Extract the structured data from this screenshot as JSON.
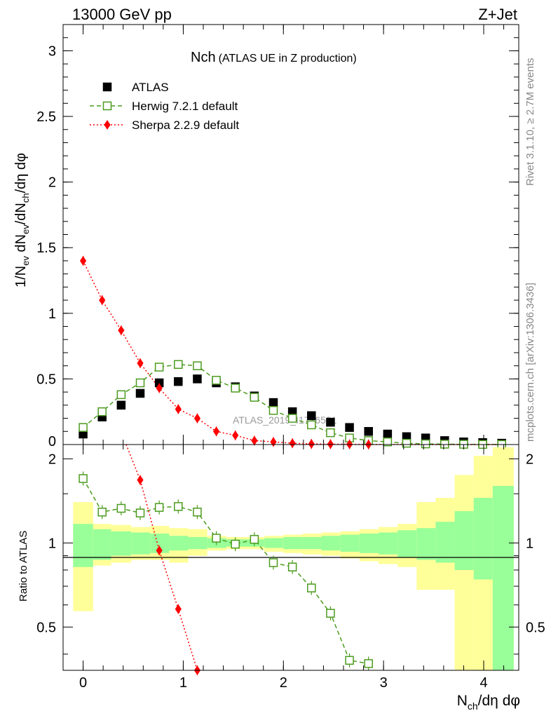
{
  "header": {
    "energy": "13000 GeV pp",
    "process": "Z+Jet",
    "side_rivet": "Rivet 3.1.10, ≥ 2.7M events",
    "side_mcplots": "mcplots.cern.ch [arXiv:1306.3436]"
  },
  "chart_data": {
    "type": "scatter",
    "title_main": "Nch",
    "title_sub": "(ATLAS UE in Z production)",
    "watermark": "ATLAS_2019_I1736531",
    "xlabel": "N_ch/dη dφ",
    "xlim": [
      -0.2,
      4.35
    ],
    "main_panel": {
      "ylabel": "1/N_ev dN_ev/dN_ch/dη dφ",
      "ylim": [
        0,
        3.2
      ],
      "yticks": [
        0.5,
        1,
        1.5,
        2,
        2.5,
        3
      ],
      "ytick_labels": [
        "0.5",
        "1",
        "1.5",
        "2",
        "2.5",
        "3"
      ]
    },
    "ratio_panel": {
      "ylabel": "Ratio to ATLAS",
      "ylim": [
        0.35,
        2.25
      ],
      "yticks": [
        0.5,
        1,
        2
      ],
      "ytick_labels": [
        "0.5",
        "1",
        "2"
      ]
    },
    "xticks": [
      0,
      1,
      2,
      3,
      4
    ],
    "xtick_labels": [
      "0",
      "1",
      "2",
      "3",
      "4"
    ],
    "legend": [
      {
        "name": "ATLAS",
        "color": "#000000",
        "marker": "filled-square"
      },
      {
        "name": "Herwig 7.2.1 default",
        "color": "#4c9b1e",
        "marker": "open-square",
        "line": "dashed"
      },
      {
        "name": "Sherpa 2.2.9 default",
        "color": "#ff0000",
        "marker": "filled-diamond",
        "line": "dotted"
      }
    ],
    "x": [
      0.0,
      0.19,
      0.38,
      0.57,
      0.76,
      0.95,
      1.14,
      1.33,
      1.52,
      1.71,
      1.9,
      2.09,
      2.28,
      2.47,
      2.66,
      2.85,
      3.04,
      3.23,
      3.42,
      3.61,
      3.8,
      3.99,
      4.18
    ],
    "bin_edges": [
      -0.1,
      0.1,
      0.28,
      0.48,
      0.67,
      0.86,
      1.05,
      1.24,
      1.43,
      1.62,
      1.81,
      2.0,
      2.19,
      2.38,
      2.57,
      2.76,
      2.95,
      3.14,
      3.33,
      3.52,
      3.71,
      3.9,
      4.09,
      4.3
    ],
    "series": [
      {
        "name": "ATLAS",
        "values": [
          0.08,
          0.21,
          0.3,
          0.39,
          0.47,
          0.48,
          0.5,
          0.47,
          0.44,
          0.37,
          0.32,
          0.25,
          0.22,
          0.17,
          0.13,
          0.1,
          0.08,
          0.06,
          0.05,
          0.03,
          0.02,
          0.015,
          0.01
        ]
      },
      {
        "name": "Herwig 7.2.1 default",
        "values": [
          0.13,
          0.25,
          0.38,
          0.47,
          0.59,
          0.61,
          0.6,
          0.49,
          0.43,
          0.36,
          0.26,
          0.2,
          0.15,
          0.09,
          0.05,
          0.03,
          0.02,
          0.01,
          0.005,
          0.003,
          0.002,
          0.001,
          0.0005
        ]
      },
      {
        "name": "Sherpa 2.2.9 default",
        "values": [
          1.4,
          1.1,
          0.87,
          0.62,
          0.43,
          0.27,
          0.2,
          0.1,
          0.07,
          0.03,
          0.02,
          0.01,
          0.005,
          0.003,
          0.002,
          0.001,
          0.0007,
          0.0004,
          0.0002,
          0.0001,
          0.0001,
          0.0001,
          0.0001
        ]
      }
    ],
    "ratio_series": [
      {
        "name": "Herwig 7.2.1 default",
        "x": [
          0.0,
          0.19,
          0.38,
          0.57,
          0.76,
          0.95,
          1.14,
          1.33,
          1.52,
          1.71,
          1.9,
          2.09,
          2.28,
          2.47,
          2.66,
          2.85
        ],
        "values": [
          1.7,
          1.29,
          1.33,
          1.28,
          1.34,
          1.35,
          1.29,
          1.04,
          0.99,
          1.03,
          0.85,
          0.82,
          0.69,
          0.56,
          0.38,
          0.37
        ]
      },
      {
        "name": "Sherpa 2.2.9 default",
        "x": [
          0.57,
          0.76,
          0.95,
          1.14
        ],
        "values": [
          1.68,
          0.94,
          0.58,
          0.35
        ]
      }
    ],
    "band_inner": {
      "low": [
        0.82,
        0.87,
        0.9,
        0.91,
        0.92,
        0.94,
        0.95,
        0.96,
        0.97,
        0.97,
        0.96,
        0.95,
        0.95,
        0.94,
        0.93,
        0.92,
        0.91,
        0.89,
        0.87,
        0.85,
        0.8,
        0.74,
        0.35
      ],
      "high": [
        1.17,
        1.12,
        1.1,
        1.09,
        1.08,
        1.06,
        1.05,
        1.04,
        1.03,
        1.03,
        1.04,
        1.05,
        1.05,
        1.06,
        1.07,
        1.08,
        1.09,
        1.11,
        1.13,
        1.19,
        1.3,
        1.45,
        1.6
      ]
    },
    "band_outer": {
      "low": [
        0.57,
        0.83,
        0.85,
        0.87,
        0.87,
        0.85,
        0.9,
        0.94,
        0.95,
        0.95,
        0.93,
        0.92,
        0.91,
        0.9,
        0.88,
        0.86,
        0.84,
        0.82,
        0.68,
        0.68,
        0.35,
        0.35,
        0.35
      ],
      "high": [
        1.4,
        1.17,
        1.16,
        1.14,
        1.15,
        1.13,
        1.12,
        1.06,
        1.05,
        1.05,
        1.06,
        1.07,
        1.08,
        1.09,
        1.1,
        1.12,
        1.14,
        1.17,
        1.4,
        1.45,
        1.75,
        2.05,
        2.2
      ]
    }
  }
}
